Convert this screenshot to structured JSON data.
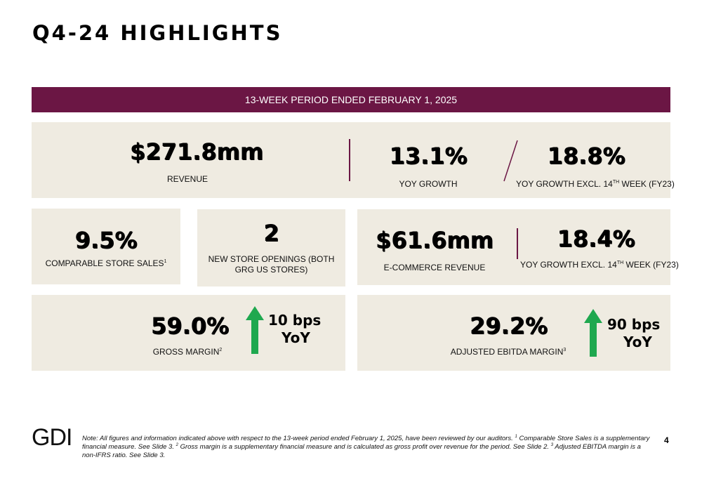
{
  "title": "Q4-24 HIGHLIGHTS",
  "banner": "13-WEEK PERIOD ENDED FEBRUARY 1, 2025",
  "colors": {
    "accent": "#6b1644",
    "card_bg": "#efebe1",
    "arrow_green": "#1fa84f"
  },
  "revenue": {
    "value": "$271.8mm",
    "label": "REVENUE",
    "yoy_value": "13.1%",
    "yoy_label": "YOY GROWTH",
    "excl_value": "18.8%",
    "excl_label_pre": "YOY GROWTH EXCL. 14",
    "excl_label_sup": "TH",
    "excl_label_post": " WEEK (FY23)"
  },
  "comparable": {
    "value": "9.5%",
    "label": "COMPARABLE STORE SALES",
    "footnote": "1"
  },
  "new_stores": {
    "value": "2",
    "label": "NEW STORE OPENINGS (BOTH GRG US STORES)"
  },
  "ecommerce": {
    "value": "$61.6mm",
    "label": "E-COMMERCE REVENUE",
    "excl_value": "18.4%",
    "excl_label_pre": "YOY GROWTH EXCL. 14",
    "excl_label_sup": "TH",
    "excl_label_post": " WEEK (FY23)"
  },
  "gross_margin": {
    "value": "59.0%",
    "label": "GROSS MARGIN",
    "footnote": "2",
    "change_line1": "10 bps",
    "change_line2": "YoY",
    "arrow_icon": "arrow-up-icon"
  },
  "ebitda": {
    "value": "29.2%",
    "label": "ADJUSTED EBITDA MARGIN",
    "footnote": "3",
    "change_line1": "90 bps",
    "change_line2": "YoY",
    "arrow_icon": "arrow-up-icon"
  },
  "footer": {
    "logo": "GDI",
    "note_1": "Note: All figures and information indicated above with respect to the 13-week period ended February 1, 2025, have been reviewed by our auditors. ",
    "note_sup1": "1",
    "note_2": " Comparable Store Sales is a supplementary financial measure. See Slide 3. ",
    "note_sup2": "2",
    "note_3": " Gross margin is a supplementary financial measure and is calculated as gross profit over revenue for the period. See Slide 2. ",
    "note_sup3": "3",
    "note_4": " Adjusted EBITDA margin is a non-IFRS ratio. See Slide 3.",
    "page_number": "4"
  }
}
